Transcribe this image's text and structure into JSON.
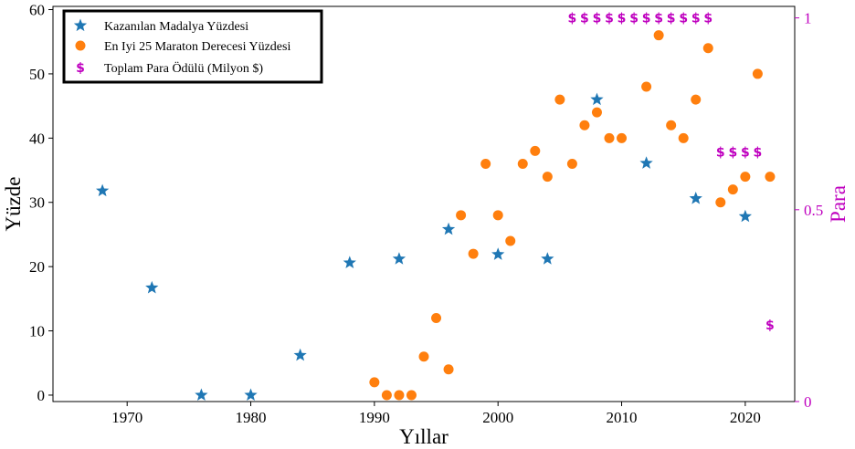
{
  "colors": {
    "stars": "#1f77b4",
    "circles": "#ff7f0e",
    "money": "#bf00bf"
  },
  "chart_data": {
    "type": "scatter",
    "xlabel": "Yıllar",
    "ylabel": "Yüzde",
    "y2label": "Para",
    "xlim": [
      1964,
      2024
    ],
    "ylim": [
      -1,
      60.5
    ],
    "y2lim": [
      0,
      1.03
    ],
    "xticks": [
      1970,
      1980,
      1990,
      2000,
      2010,
      2020
    ],
    "yticks": [
      0,
      10,
      20,
      30,
      40,
      50,
      60
    ],
    "y2ticks": [
      0,
      0.5,
      1
    ],
    "legend_position": "upper-left",
    "series": [
      {
        "name": "Kazanılan Madalya Yüzdesi",
        "marker": "star",
        "axis": "left",
        "x": [
          1968,
          1972,
          1976,
          1980,
          1984,
          1988,
          1992,
          1996,
          2000,
          2004,
          2008,
          2012,
          2016,
          2020
        ],
        "y": [
          31.8,
          16.7,
          0,
          0,
          6.2,
          20.6,
          21.2,
          25.8,
          21.9,
          21.2,
          46,
          36.1,
          30.6,
          27.8
        ]
      },
      {
        "name": "En Iyi 25 Maraton Derecesi Yüzdesi",
        "marker": "circle",
        "axis": "left",
        "x": [
          1990,
          1991,
          1992,
          1993,
          1994,
          1995,
          1996,
          1997,
          1998,
          1999,
          2000,
          2001,
          2002,
          2003,
          2004,
          2005,
          2006,
          2007,
          2008,
          2009,
          2010,
          2012,
          2013,
          2014,
          2015,
          2016,
          2017,
          2018,
          2019,
          2020,
          2021,
          2022
        ],
        "y": [
          2,
          0,
          0,
          0,
          6,
          12,
          4,
          28,
          22,
          36,
          28,
          24,
          36,
          38,
          34,
          46,
          36,
          42,
          44,
          40,
          40,
          48,
          56,
          42,
          40,
          46,
          54,
          30,
          32,
          34,
          50,
          34
        ]
      },
      {
        "name": "Toplam Para Ödülü (Milyon $)",
        "marker": "dollar",
        "axis": "right",
        "x": [
          2006,
          2007,
          2008,
          2009,
          2010,
          2011,
          2012,
          2013,
          2014,
          2015,
          2016,
          2017,
          2018,
          2019,
          2020,
          2021,
          2022
        ],
        "y": [
          1,
          1,
          1,
          1,
          1,
          1,
          1,
          1,
          1,
          1,
          1,
          1,
          0.65,
          0.65,
          0.65,
          0.65,
          0.2
        ]
      }
    ]
  }
}
